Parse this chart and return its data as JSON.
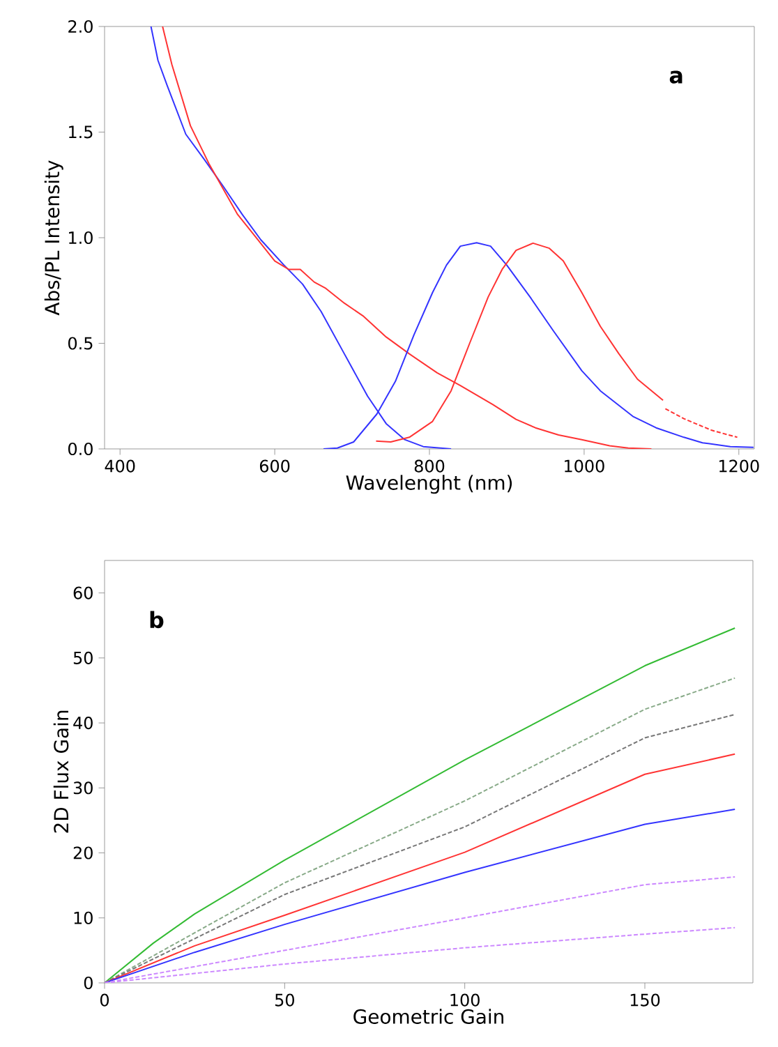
{
  "chart_data": [
    {
      "type": "line",
      "xlabel": "Wavelenght (nm)",
      "ylabel": "Abs/PL Intensity",
      "annotations": [
        "**a**"
      ],
      "xlim": [
        380,
        1220
      ],
      "ylim": [
        0,
        2.0
      ],
      "xticks": [
        400,
        600,
        800,
        1000,
        1200
      ],
      "yticks": [
        {
          "value": 0,
          "label": "0.0"
        },
        {
          "value": 0.5,
          "label": "0.5"
        },
        {
          "value": 1.0,
          "label": "1.0"
        },
        {
          "value": 1.5,
          "label": "1.5"
        },
        {
          "value": 2.0,
          "label": "2.0"
        }
      ],
      "series": [
        {
          "color": "#3333ff",
          "x": [
            440,
            449,
            461,
            485,
            509,
            534,
            558,
            582,
            612,
            636,
            660,
            690,
            720,
            744,
            768,
            792,
            828
          ],
          "values": [
            2.0,
            1.84,
            1.72,
            1.49,
            1.37,
            1.24,
            1.11,
            0.99,
            0.87,
            0.78,
            0.65,
            0.45,
            0.25,
            0.12,
            0.044,
            0.011,
            0
          ]
        },
        {
          "color": "#ff3333",
          "x": [
            455,
            467,
            491,
            515,
            552,
            576,
            600,
            618,
            633,
            651,
            666,
            690,
            714,
            744,
            774,
            810,
            840,
            882,
            912,
            937,
            967,
            997,
            1033,
            1057,
            1087
          ],
          "values": [
            2.0,
            1.82,
            1.53,
            1.35,
            1.11,
            1.0,
            0.89,
            0.85,
            0.85,
            0.79,
            0.76,
            0.69,
            0.63,
            0.53,
            0.45,
            0.36,
            0.3,
            0.21,
            0.14,
            0.1,
            0.066,
            0.044,
            0.015,
            0.004,
            0
          ]
        },
        {
          "color": "#3333ff",
          "x": [
            663,
            681,
            702,
            732,
            756,
            780,
            804,
            822,
            840,
            861,
            879,
            900,
            930,
            960,
            997,
            1021,
            1063,
            1093,
            1129,
            1153,
            1189,
            1219
          ],
          "values": [
            0,
            0.004,
            0.033,
            0.165,
            0.32,
            0.54,
            0.74,
            0.87,
            0.96,
            0.976,
            0.96,
            0.87,
            0.72,
            0.56,
            0.37,
            0.275,
            0.154,
            0.1,
            0.055,
            0.029,
            0.011,
            0.007
          ]
        },
        {
          "color": "#ff3333",
          "x": [
            731,
            750,
            774,
            804,
            828,
            852,
            876,
            894,
            912,
            934,
            955,
            973,
            997,
            1021,
            1045,
            1069,
            1102
          ],
          "values": [
            0.037,
            0.033,
            0.055,
            0.13,
            0.275,
            0.5,
            0.72,
            0.85,
            0.94,
            0.974,
            0.95,
            0.89,
            0.74,
            0.58,
            0.45,
            0.33,
            0.23
          ]
        },
        {
          "color": "#ff3333",
          "line_style": "dashed",
          "x": [
            1105,
            1129,
            1165,
            1198
          ],
          "values": [
            0.19,
            0.143,
            0.088,
            0.055
          ]
        }
      ]
    },
    {
      "type": "line",
      "xlabel": "Geometric Gain",
      "ylabel": "2D Flux Gain",
      "annotations": [
        "**b**"
      ],
      "xlim": [
        0,
        180
      ],
      "ylim": [
        0,
        65
      ],
      "xticks": [
        0,
        50,
        100,
        150
      ],
      "yticks": [
        0,
        10,
        20,
        30,
        40,
        50,
        60
      ],
      "series": [
        {
          "color": "#33bb33",
          "x": [
            0,
            13.5,
            25,
            50,
            100,
            150,
            175
          ],
          "values": [
            0,
            6.1,
            10.6,
            18.9,
            34.3,
            48.8,
            54.6
          ]
        },
        {
          "color": "#88aa88",
          "line_style": "dashed",
          "x": [
            0,
            50,
            100,
            150,
            175
          ],
          "values": [
            0,
            15.4,
            28.0,
            42.1,
            46.9
          ]
        },
        {
          "color": "#777777",
          "line_style": "dashed",
          "x": [
            0,
            50,
            100,
            150,
            175
          ],
          "values": [
            0,
            13.6,
            24.0,
            37.7,
            41.3
          ]
        },
        {
          "color": "#ff3333",
          "x": [
            0,
            25,
            50,
            100,
            150,
            175
          ],
          "values": [
            0,
            5.7,
            10.4,
            20.1,
            32.1,
            35.2
          ]
        },
        {
          "color": "#3333ff",
          "x": [
            0,
            25,
            50,
            100,
            150,
            175
          ],
          "values": [
            0,
            4.7,
            9.0,
            17.0,
            24.4,
            26.7
          ]
        },
        {
          "color": "#cc88ff",
          "line_style": "dashed",
          "x": [
            0,
            50,
            100,
            150,
            175
          ],
          "values": [
            0,
            5.0,
            10.0,
            15.1,
            16.3
          ]
        },
        {
          "color": "#cc88ff",
          "line_style": "dashed",
          "x": [
            0,
            50,
            100,
            150,
            175
          ],
          "values": [
            0,
            2.9,
            5.4,
            7.5,
            8.5
          ]
        }
      ]
    }
  ]
}
